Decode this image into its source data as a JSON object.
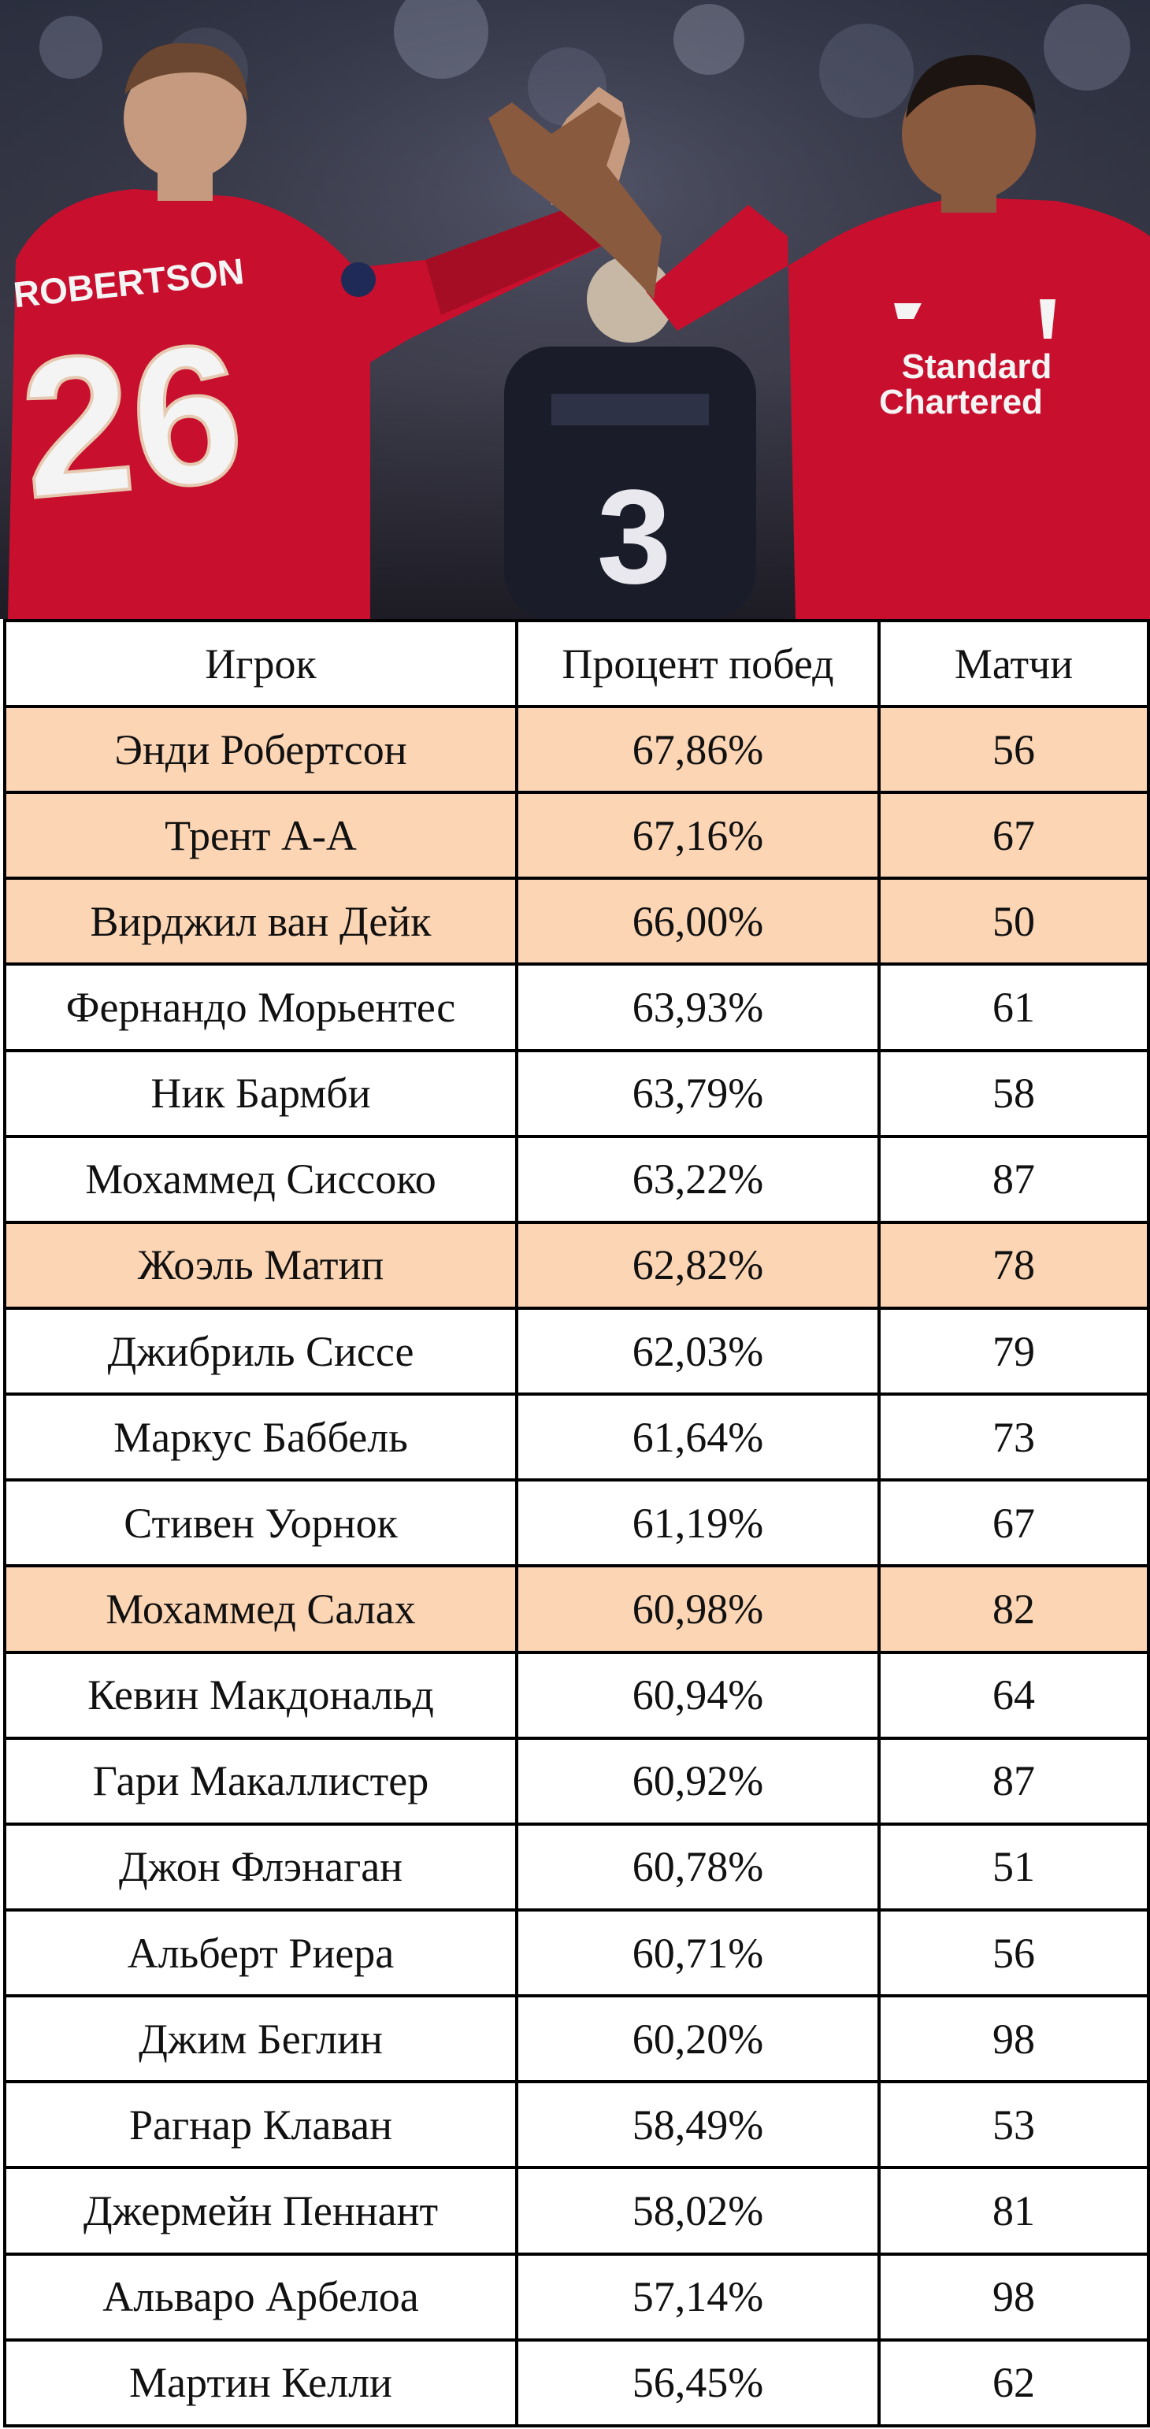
{
  "photo": {
    "left_player_name": "ROBERTSON",
    "left_player_number": "26",
    "center_player_number": "3",
    "sponsor_line1": "Standard",
    "sponsor_line2": "Chartered"
  },
  "colors": {
    "highlight_row": "#fcd5b4",
    "normal_row": "#ffffff",
    "border": "#000000",
    "jersey_red": "#c8102e"
  },
  "table": {
    "headers": [
      "Игрок",
      "Процент побед",
      "Матчи"
    ],
    "rows": [
      {
        "player": "Энди Робертсон",
        "win_pct": "67,86%",
        "matches": "56",
        "highlighted": true
      },
      {
        "player": "Трент А-А",
        "win_pct": "67,16%",
        "matches": "67",
        "highlighted": true
      },
      {
        "player": "Вирджил ван Дейк",
        "win_pct": "66,00%",
        "matches": "50",
        "highlighted": true
      },
      {
        "player": "Фернандо Морьентес",
        "win_pct": "63,93%",
        "matches": "61",
        "highlighted": false
      },
      {
        "player": "Ник Бармби",
        "win_pct": "63,79%",
        "matches": "58",
        "highlighted": false
      },
      {
        "player": "Мохаммед Сиссоко",
        "win_pct": "63,22%",
        "matches": "87",
        "highlighted": false
      },
      {
        "player": "Жоэль Матип",
        "win_pct": "62,82%",
        "matches": "78",
        "highlighted": true
      },
      {
        "player": "Джибриль Сиссе",
        "win_pct": "62,03%",
        "matches": "79",
        "highlighted": false
      },
      {
        "player": "Маркус Баббель",
        "win_pct": "61,64%",
        "matches": "73",
        "highlighted": false
      },
      {
        "player": "Стивен Уорнок",
        "win_pct": "61,19%",
        "matches": "67",
        "highlighted": false
      },
      {
        "player": "Мохаммед Салах",
        "win_pct": "60,98%",
        "matches": "82",
        "highlighted": true
      },
      {
        "player": "Кевин Макдональд",
        "win_pct": "60,94%",
        "matches": "64",
        "highlighted": false
      },
      {
        "player": "Гари Макаллистер",
        "win_pct": "60,92%",
        "matches": "87",
        "highlighted": false
      },
      {
        "player": "Джон Флэнаган",
        "win_pct": "60,78%",
        "matches": "51",
        "highlighted": false
      },
      {
        "player": "Альберт Риера",
        "win_pct": "60,71%",
        "matches": "56",
        "highlighted": false
      },
      {
        "player": "Джим Беглин",
        "win_pct": "60,20%",
        "matches": "98",
        "highlighted": false
      },
      {
        "player": "Рагнар Клаван",
        "win_pct": "58,49%",
        "matches": "53",
        "highlighted": false
      },
      {
        "player": "Джермейн Пеннант",
        "win_pct": "58,02%",
        "matches": "81",
        "highlighted": false
      },
      {
        "player": "Альваро Арбелоа",
        "win_pct": "57,14%",
        "matches": "98",
        "highlighted": false
      },
      {
        "player": "Мартин Келли",
        "win_pct": "56,45%",
        "matches": "62",
        "highlighted": false
      }
    ]
  }
}
